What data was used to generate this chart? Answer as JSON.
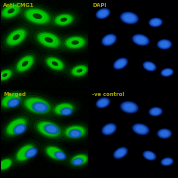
{
  "label_color": "#aaaa00",
  "label_fontsize": 3.8,
  "bg_color": "#000000",
  "green_cells": [
    [
      0.12,
      0.88,
      0.22,
      0.13,
      25
    ],
    [
      0.42,
      0.82,
      0.28,
      0.16,
      -15
    ],
    [
      0.72,
      0.78,
      0.2,
      0.12,
      10
    ],
    [
      0.18,
      0.58,
      0.24,
      0.14,
      35
    ],
    [
      0.55,
      0.55,
      0.26,
      0.15,
      -20
    ],
    [
      0.85,
      0.52,
      0.22,
      0.13,
      5
    ],
    [
      0.28,
      0.28,
      0.22,
      0.13,
      40
    ],
    [
      0.62,
      0.28,
      0.2,
      0.12,
      -25
    ],
    [
      0.9,
      0.2,
      0.18,
      0.11,
      15
    ],
    [
      0.05,
      0.15,
      0.16,
      0.1,
      30
    ]
  ],
  "blue_nuclei_top": [
    [
      0.15,
      0.85,
      0.16,
      0.11,
      20
    ],
    [
      0.45,
      0.8,
      0.2,
      0.13,
      -10
    ],
    [
      0.75,
      0.75,
      0.15,
      0.1,
      5
    ],
    [
      0.22,
      0.55,
      0.17,
      0.12,
      25
    ],
    [
      0.58,
      0.55,
      0.19,
      0.12,
      -15
    ],
    [
      0.85,
      0.5,
      0.16,
      0.11,
      0
    ],
    [
      0.35,
      0.28,
      0.17,
      0.11,
      30
    ],
    [
      0.68,
      0.25,
      0.15,
      0.1,
      -20
    ],
    [
      0.88,
      0.18,
      0.14,
      0.09,
      10
    ]
  ],
  "blue_nuclei_bottom": [
    [
      0.15,
      0.85,
      0.16,
      0.11,
      20
    ],
    [
      0.45,
      0.8,
      0.2,
      0.13,
      -10
    ],
    [
      0.75,
      0.75,
      0.15,
      0.1,
      5
    ],
    [
      0.22,
      0.55,
      0.17,
      0.12,
      25
    ],
    [
      0.58,
      0.55,
      0.19,
      0.12,
      -15
    ],
    [
      0.85,
      0.5,
      0.16,
      0.11,
      0
    ],
    [
      0.35,
      0.28,
      0.17,
      0.11,
      30
    ],
    [
      0.68,
      0.25,
      0.15,
      0.1,
      -20
    ],
    [
      0.88,
      0.18,
      0.14,
      0.09,
      10
    ]
  ],
  "green_color_bright": "#00dd00",
  "green_color_mid": "#008800",
  "green_color_dark": "#003300",
  "blue_color_bright": "#4477ff",
  "blue_color_mid": "#1144cc",
  "blue_color_dark": "#000033"
}
